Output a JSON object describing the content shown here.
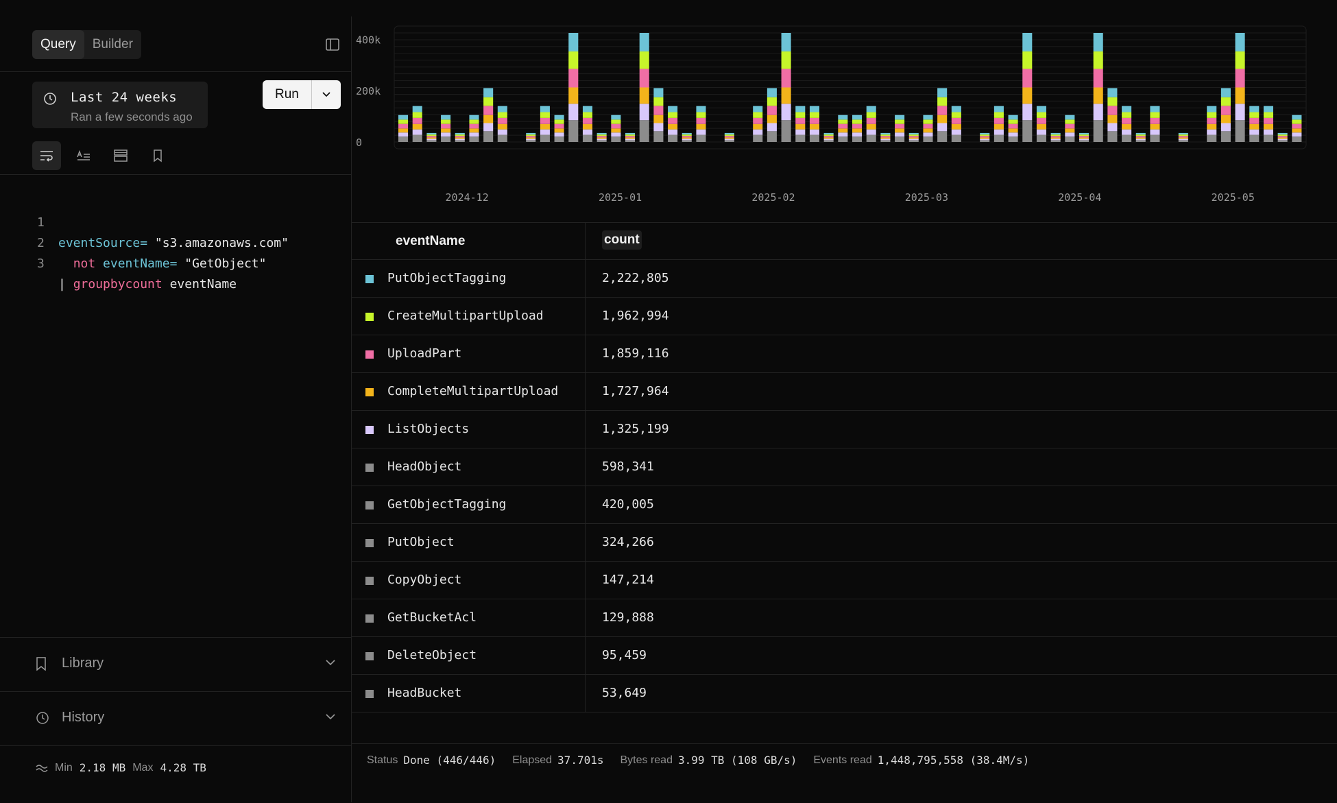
{
  "mode_tabs": [
    "Query",
    "Builder"
  ],
  "time_range": {
    "label": "Last 24 weeks",
    "sub": "Ran a few seconds ago"
  },
  "run": {
    "label": "Run"
  },
  "editor": {
    "line_numbers": [
      "1",
      "2",
      "3"
    ],
    "line1": {
      "field": "eventSource=",
      "value": " \"s3.amazonaws.com\""
    },
    "line2": {
      "indent": "  ",
      "op": "not",
      "field": " eventName=",
      "value": " \"GetObject\""
    },
    "line3": {
      "pipe": "| ",
      "fn": "groupbycount",
      "arg": " eventName"
    }
  },
  "library": {
    "label": "Library"
  },
  "history": {
    "label": "History"
  },
  "size_stats": {
    "min_label": "Min",
    "min": "2.18 MB",
    "max_label": "Max",
    "max": "4.28 TB"
  },
  "colors": {
    "PutObjectTagging": "#6cc3d6",
    "CreateMultipartUpload": "#c7f52a",
    "UploadPart": "#f06ea5",
    "CompleteMultipartUpload": "#f3b41b",
    "ListObjects": "#d8c8fb",
    "other": "#8c8c8c"
  },
  "chart_data": {
    "type": "bar",
    "stacked": true,
    "y_ticks": [
      "400k",
      "200k",
      "0"
    ],
    "ylim": [
      0,
      425000
    ],
    "x_tick_labels": [
      "2024-12",
      "2025-01",
      "2025-02",
      "2025-03",
      "2025-04",
      "2025-05"
    ],
    "x_tick_bar_index": [
      4.5,
      15.3,
      26.1,
      36.9,
      47.7,
      58.5
    ],
    "series_order": [
      "other",
      "ListObjects",
      "CompleteMultipartUpload",
      "UploadPart",
      "CreateMultipartUpload",
      "PutObjectTagging"
    ],
    "bar_totals": [
      105000,
      140000,
      35000,
      105000,
      35000,
      105000,
      210000,
      140000,
      0,
      35000,
      140000,
      105000,
      425000,
      140000,
      35000,
      105000,
      35000,
      425000,
      210000,
      140000,
      35000,
      140000,
      0,
      35000,
      0,
      140000,
      210000,
      425000,
      140000,
      140000,
      35000,
      105000,
      105000,
      140000,
      35000,
      105000,
      35000,
      105000,
      210000,
      140000,
      0,
      35000,
      140000,
      105000,
      425000,
      140000,
      35000,
      105000,
      35000,
      425000,
      210000,
      140000,
      35000,
      140000,
      0,
      35000,
      0,
      140000,
      210000,
      425000,
      140000,
      140000,
      35000,
      105000
    ],
    "series_fraction": [
      0.2,
      0.15,
      0.15,
      0.17,
      0.16,
      0.17
    ]
  },
  "table": {
    "headers": {
      "name": "eventName",
      "count": "count"
    },
    "rows": [
      {
        "name": "PutObjectTagging",
        "count": "2,222,805",
        "color": "#6cc3d6"
      },
      {
        "name": "CreateMultipartUpload",
        "count": "1,962,994",
        "color": "#c7f52a"
      },
      {
        "name": "UploadPart",
        "count": "1,859,116",
        "color": "#f06ea5"
      },
      {
        "name": "CompleteMultipartUpload",
        "count": "1,727,964",
        "color": "#f3b41b"
      },
      {
        "name": "ListObjects",
        "count": "1,325,199",
        "color": "#d8c8fb"
      },
      {
        "name": "HeadObject",
        "count": "598,341",
        "color": "#8c8c8c"
      },
      {
        "name": "GetObjectTagging",
        "count": "420,005",
        "color": "#8c8c8c"
      },
      {
        "name": "PutObject",
        "count": "324,266",
        "color": "#8c8c8c"
      },
      {
        "name": "CopyObject",
        "count": "147,214",
        "color": "#8c8c8c"
      },
      {
        "name": "GetBucketAcl",
        "count": "129,888",
        "color": "#8c8c8c"
      },
      {
        "name": "DeleteObject",
        "count": "95,459",
        "color": "#8c8c8c"
      },
      {
        "name": "HeadBucket",
        "count": "53,649",
        "color": "#8c8c8c"
      }
    ]
  },
  "status": {
    "status_label": "Status",
    "status_value": "Done (446/446)",
    "elapsed_label": "Elapsed",
    "elapsed_value": "37.701s",
    "bytes_label": "Bytes read",
    "bytes_value": "3.99 TB (108 GB/s)",
    "events_label": "Events read",
    "events_value": "1,448,795,558 (38.4M/s)"
  }
}
